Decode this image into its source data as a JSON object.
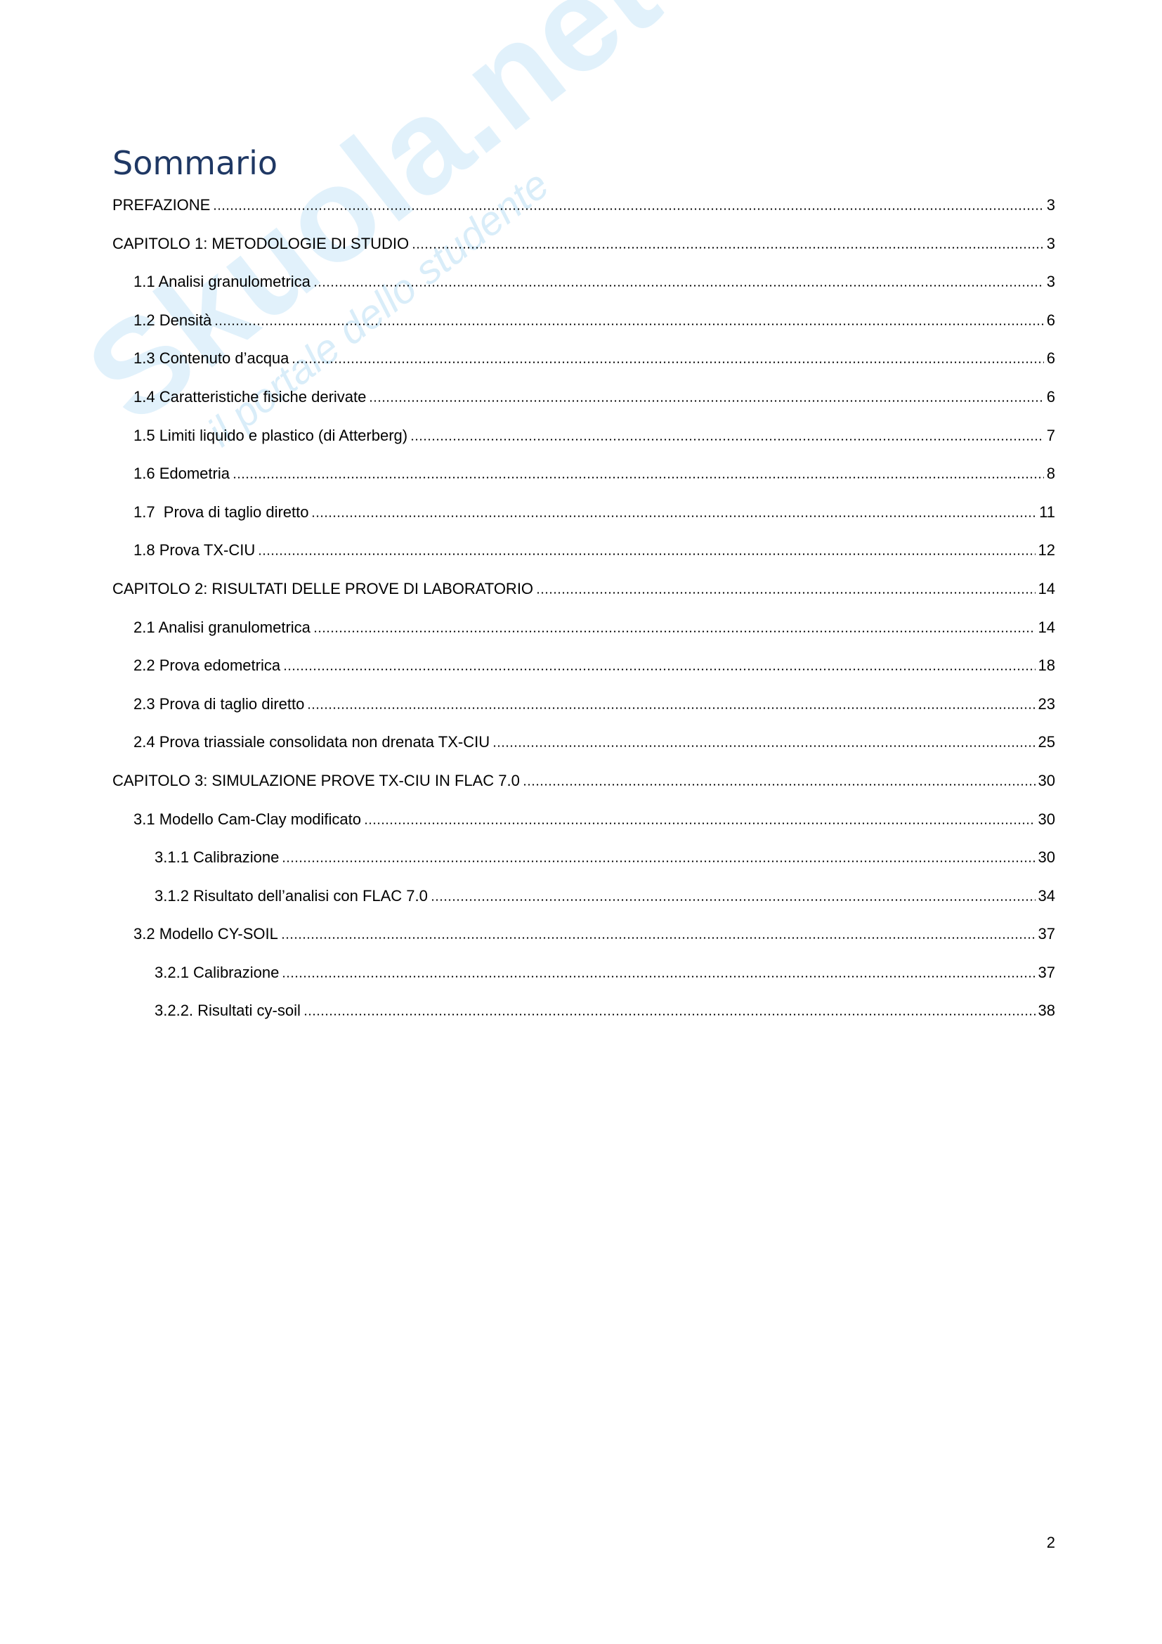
{
  "watermark": {
    "brand": "Skuola.net",
    "tagline": "il portale dello studente"
  },
  "title": "Sommario",
  "entries": [
    {
      "text": "PREFAZIONE",
      "page": 3,
      "level": 0
    },
    {
      "text": "CAPITOLO 1: METODOLOGIE DI STUDIO",
      "page": 3,
      "level": 0
    },
    {
      "text": "1.1 Analisi granulometrica",
      "page": 3,
      "level": 1
    },
    {
      "text": "1.2 Densità",
      "page": 6,
      "level": 1
    },
    {
      "text": "1.3 Contenuto d’acqua",
      "page": 6,
      "level": 1
    },
    {
      "text": "1.4 Caratteristiche fisiche derivate",
      "page": 6,
      "level": 1
    },
    {
      "text": "1.5 Limiti liquido e plastico (di Atterberg)",
      "page": 7,
      "level": 1
    },
    {
      "text": "1.6 Edometria",
      "page": 8,
      "level": 1
    },
    {
      "text": "1.7  Prova di taglio diretto",
      "page": 11,
      "level": 1
    },
    {
      "text": "1.8 Prova TX-CIU",
      "page": 12,
      "level": 1
    },
    {
      "text": "CAPITOLO 2: RISULTATI DELLE PROVE DI LABORATORIO",
      "page": 14,
      "level": 0
    },
    {
      "text": "2.1 Analisi granulometrica",
      "page": 14,
      "level": 1
    },
    {
      "text": "2.2 Prova edometrica",
      "page": 18,
      "level": 1
    },
    {
      "text": "2.3 Prova di taglio diretto",
      "page": 23,
      "level": 1
    },
    {
      "text": "2.4 Prova triassiale consolidata non drenata TX-CIU",
      "page": 25,
      "level": 1
    },
    {
      "text": "CAPITOLO 3: SIMULAZIONE PROVE TX-CIU IN FLAC 7.0",
      "page": 30,
      "level": 0
    },
    {
      "text": "3.1 Modello Cam-Clay modificato",
      "page": 30,
      "level": 1
    },
    {
      "text": "3.1.1 Calibrazione",
      "page": 30,
      "level": 2
    },
    {
      "text": "3.1.2 Risultato dell’analisi con FLAC 7.0",
      "page": 34,
      "level": 2
    },
    {
      "text": "3.2 Modello CY-SOIL",
      "page": 37,
      "level": 1
    },
    {
      "text": "3.2.1 Calibrazione",
      "page": 37,
      "level": 2
    },
    {
      "text": "3.2.2. Risultati cy-soil",
      "page": 38,
      "level": 2
    }
  ],
  "page_number": 2
}
